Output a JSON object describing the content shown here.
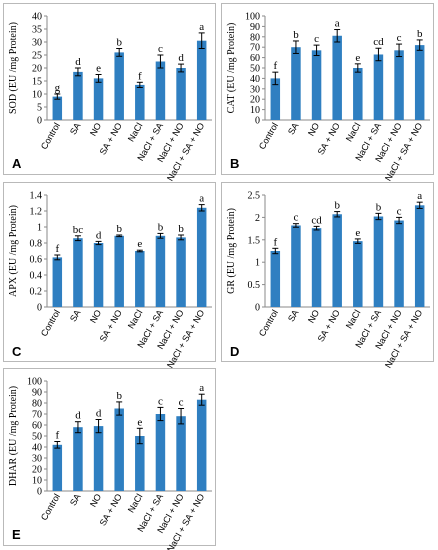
{
  "chart_data": [
    {
      "type": "bar",
      "panel": "A",
      "ylabel": "SOD (EU /mg Protein)",
      "ylim": [
        0,
        40
      ],
      "yticks": [
        0,
        5,
        10,
        15,
        20,
        25,
        30,
        35,
        40
      ],
      "categories": [
        "Control",
        "SA",
        "NO",
        "SA + NO",
        "NaCl",
        "NaCl + SA",
        "NaCl + NO",
        "NaCl + SA + NO"
      ],
      "values": [
        9,
        18.5,
        16,
        26,
        13.5,
        22.5,
        20,
        30.5
      ],
      "errors": [
        1,
        1.5,
        1.5,
        1.5,
        1,
        2.5,
        1.5,
        3
      ],
      "letters": [
        "g",
        "d",
        "e",
        "b",
        "f",
        "c",
        "d",
        "a"
      ],
      "color": "#2f7fc1"
    },
    {
      "type": "bar",
      "panel": "B",
      "ylabel": "CAT (EU /mg Protein)",
      "ylim": [
        0,
        100
      ],
      "yticks": [
        0,
        10,
        20,
        30,
        40,
        50,
        60,
        70,
        80,
        90,
        100
      ],
      "categories": [
        "Control",
        "SA",
        "NO",
        "SA + NO",
        "NaCl",
        "NaCl + SA",
        "NaCl + NO",
        "NaCl + SA + NO"
      ],
      "values": [
        40,
        70,
        67,
        81,
        50,
        63,
        67,
        72
      ],
      "errors": [
        6,
        6,
        5,
        6,
        4,
        6,
        6,
        5
      ],
      "letters": [
        "f",
        "b",
        "c",
        "a",
        "e",
        "cd",
        "c",
        "b"
      ],
      "color": "#2f7fc1"
    },
    {
      "type": "bar",
      "panel": "C",
      "ylabel": "APX (EU /mg Protein)",
      "ylim": [
        0,
        1.4
      ],
      "yticks": [
        0,
        0.2,
        0.4,
        0.6,
        0.8,
        1,
        1.2,
        1.4
      ],
      "categories": [
        "Control",
        "SA",
        "NO",
        "SA + NO",
        "NaCl",
        "NaCl + SA",
        "NaCl + NO",
        "NaCl + SA + NO"
      ],
      "values": [
        0.62,
        0.86,
        0.8,
        0.89,
        0.7,
        0.89,
        0.87,
        1.24
      ],
      "errors": [
        0.03,
        0.03,
        0.02,
        0.01,
        0.01,
        0.03,
        0.03,
        0.04
      ],
      "letters": [
        "f",
        "bc",
        "d",
        "b",
        "e",
        "b",
        "b",
        "a"
      ],
      "color": "#2f7fc1"
    },
    {
      "type": "bar",
      "panel": "D",
      "ylabel": "GR (EU /mg Protein)",
      "ylim": [
        0,
        2.5
      ],
      "yticks": [
        0,
        0.5,
        1,
        1.5,
        2,
        2.5
      ],
      "categories": [
        "Control",
        "SA",
        "NO",
        "SA + NO",
        "NaCl",
        "NaCl + SA",
        "NaCl + NO",
        "NaCl + SA + NO"
      ],
      "values": [
        1.25,
        1.82,
        1.76,
        2.07,
        1.47,
        2.02,
        1.93,
        2.27
      ],
      "errors": [
        0.06,
        0.04,
        0.04,
        0.06,
        0.05,
        0.07,
        0.07,
        0.07
      ],
      "letters": [
        "f",
        "c",
        "cd",
        "b",
        "e",
        "b",
        "c",
        "a"
      ],
      "color": "#2f7fc1"
    },
    {
      "type": "bar",
      "panel": "E",
      "ylabel": "DHAR (EU /mg Protein)",
      "ylim": [
        0,
        100
      ],
      "yticks": [
        0,
        10,
        20,
        30,
        40,
        50,
        60,
        70,
        80,
        90,
        100
      ],
      "categories": [
        "Control",
        "SA",
        "NO",
        "SA + NO",
        "NaCl",
        "NaCl + SA",
        "NaCl + NO",
        "NaCl + SA + NO"
      ],
      "values": [
        42,
        58,
        59,
        75,
        50,
        70,
        68,
        83
      ],
      "errors": [
        3,
        5,
        6,
        6,
        7,
        6,
        7,
        5
      ],
      "letters": [
        "f",
        "d",
        "d",
        "b",
        "e",
        "c",
        "c",
        "a"
      ],
      "color": "#2f7fc1"
    }
  ]
}
